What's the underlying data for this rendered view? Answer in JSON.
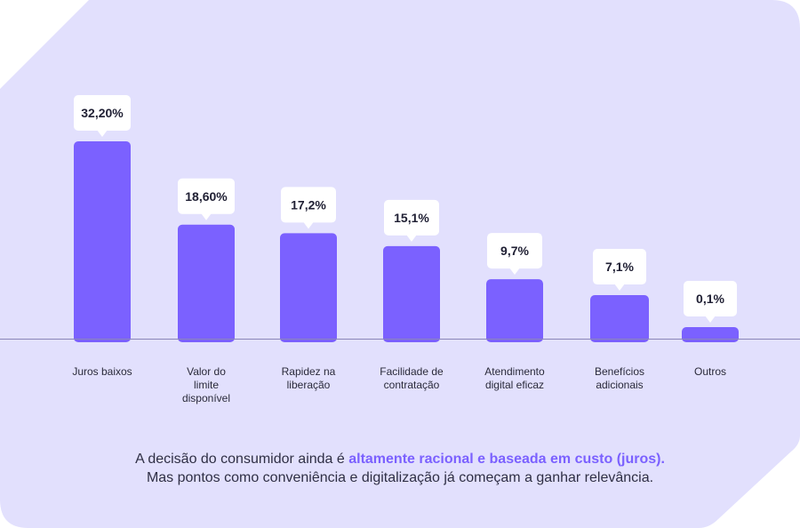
{
  "colors": {
    "background": "#E2E0FD",
    "bar": "#7B61FF",
    "highlight": "#7B61FF",
    "baseline": "#8a85b8"
  },
  "chart_data": {
    "type": "bar",
    "categories": [
      "Juros baixos",
      "Valor do limite disponível",
      "Rapidez na liberação",
      "Facilidade de contratação",
      "Atendimento digital eficaz",
      "Benefícios adicionais",
      "Outros"
    ],
    "category_lines": [
      [
        "Juros baixos"
      ],
      [
        "Valor do",
        "limite",
        "disponível"
      ],
      [
        "Rapidez na",
        "liberação"
      ],
      [
        "Facilidade de",
        "contratação"
      ],
      [
        "Atendimento",
        "digital eficaz"
      ],
      [
        "Benefícios",
        "adicionais"
      ],
      [
        "Outros"
      ]
    ],
    "values": [
      32.2,
      18.6,
      17.2,
      15.1,
      9.7,
      7.1,
      0.1
    ],
    "data_labels": [
      "32,20%",
      "18,60%",
      "17,2%",
      "15,1%",
      "9,7%",
      "7,1%",
      "0,1%"
    ],
    "ylim": [
      0,
      32.2
    ],
    "grid": false,
    "title": "",
    "xlabel": "",
    "ylabel": ""
  },
  "caption": {
    "part1": "A decisão do consumidor ainda é ",
    "highlight": "altamente racional e baseada em custo (juros).",
    "line2": "Mas pontos como conveniência e digitalização já começam a ganhar relevância."
  }
}
